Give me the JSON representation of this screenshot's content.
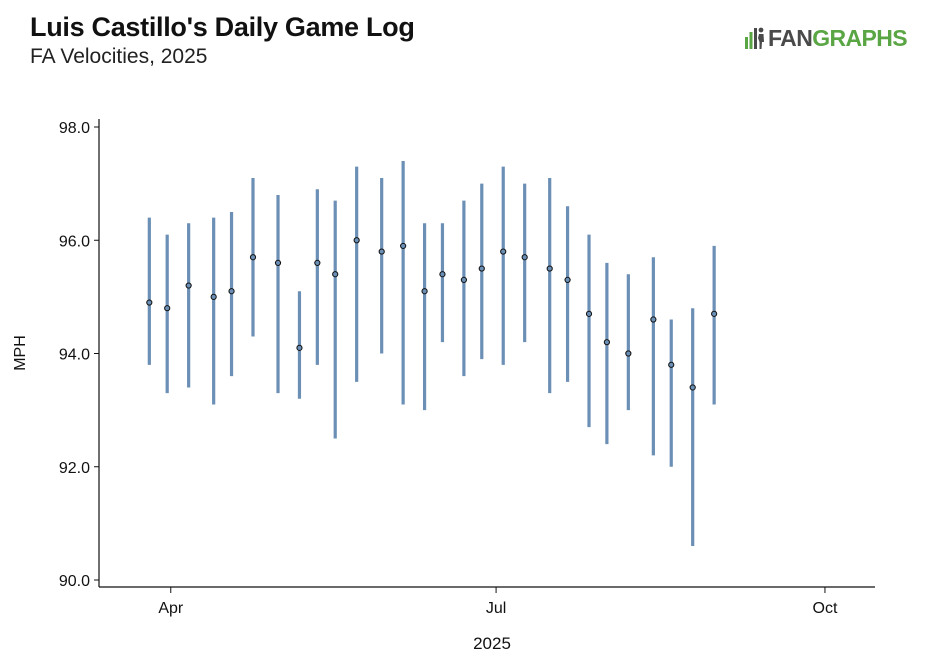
{
  "header": {
    "title": "Luis Castillo's Daily Game Log",
    "subtitle": "FA Velocities, 2025"
  },
  "logo": {
    "fan_text": "FAN",
    "graphs_text": "GRAPHS",
    "colors": {
      "fan": "#4a4a4a",
      "graphs": "#5aa544"
    }
  },
  "chart_data": {
    "type": "scatter",
    "xlabel": "2025",
    "ylabel": "MPH",
    "ylim": [
      90.0,
      98.0
    ],
    "yticks": [
      "90.0",
      "92.0",
      "94.0",
      "96.0",
      "98.0"
    ],
    "xlim": [
      "2025-03-15",
      "2025-10-15"
    ],
    "xticks": [
      {
        "date": "2025-04-01",
        "label": "Apr"
      },
      {
        "date": "2025-07-01",
        "label": "Jul"
      },
      {
        "date": "2025-10-01",
        "label": "Oct"
      }
    ],
    "grid": false,
    "colors": {
      "range_bar": "#6b8fb5",
      "point_fill": "#6b8fb5",
      "point_edge": "#111111"
    },
    "points": [
      {
        "date": "2025-03-26",
        "avg": 94.9,
        "min": 93.8,
        "max": 96.4
      },
      {
        "date": "2025-03-31",
        "avg": 94.8,
        "min": 93.3,
        "max": 96.1
      },
      {
        "date": "2025-04-06",
        "avg": 95.2,
        "min": 93.4,
        "max": 96.3
      },
      {
        "date": "2025-04-13",
        "avg": 95.0,
        "min": 93.1,
        "max": 96.4
      },
      {
        "date": "2025-04-18",
        "avg": 95.1,
        "min": 93.6,
        "max": 96.5
      },
      {
        "date": "2025-04-24",
        "avg": 95.7,
        "min": 94.3,
        "max": 97.1
      },
      {
        "date": "2025-05-01",
        "avg": 95.6,
        "min": 93.3,
        "max": 96.8
      },
      {
        "date": "2025-05-07",
        "avg": 94.1,
        "min": 93.2,
        "max": 95.1
      },
      {
        "date": "2025-05-12",
        "avg": 95.6,
        "min": 93.8,
        "max": 96.9
      },
      {
        "date": "2025-05-17",
        "avg": 95.4,
        "min": 92.5,
        "max": 96.7
      },
      {
        "date": "2025-05-23",
        "avg": 96.0,
        "min": 93.5,
        "max": 97.3
      },
      {
        "date": "2025-05-30",
        "avg": 95.8,
        "min": 94.0,
        "max": 97.1
      },
      {
        "date": "2025-06-05",
        "avg": 95.9,
        "min": 93.1,
        "max": 97.4
      },
      {
        "date": "2025-06-11",
        "avg": 95.1,
        "min": 93.0,
        "max": 96.3
      },
      {
        "date": "2025-06-16",
        "avg": 95.4,
        "min": 94.2,
        "max": 96.3
      },
      {
        "date": "2025-06-22",
        "avg": 95.3,
        "min": 93.6,
        "max": 96.7
      },
      {
        "date": "2025-06-27",
        "avg": 95.5,
        "min": 93.9,
        "max": 97.0
      },
      {
        "date": "2025-07-03",
        "avg": 95.8,
        "min": 93.8,
        "max": 97.3
      },
      {
        "date": "2025-07-09",
        "avg": 95.7,
        "min": 94.2,
        "max": 97.0
      },
      {
        "date": "2025-07-16",
        "avg": 95.5,
        "min": 93.3,
        "max": 97.1
      },
      {
        "date": "2025-07-21",
        "avg": 95.3,
        "min": 93.5,
        "max": 96.6
      },
      {
        "date": "2025-07-27",
        "avg": 94.7,
        "min": 92.7,
        "max": 96.1
      },
      {
        "date": "2025-08-01",
        "avg": 94.2,
        "min": 92.4,
        "max": 95.6
      },
      {
        "date": "2025-08-07",
        "avg": 94.0,
        "min": 93.0,
        "max": 95.4
      },
      {
        "date": "2025-08-14",
        "avg": 94.6,
        "min": 92.2,
        "max": 95.7
      },
      {
        "date": "2025-08-19",
        "avg": 93.8,
        "min": 92.0,
        "max": 94.6
      },
      {
        "date": "2025-08-25",
        "avg": 93.4,
        "min": 90.6,
        "max": 94.8
      },
      {
        "date": "2025-08-31",
        "avg": 94.7,
        "min": 93.1,
        "max": 95.9
      }
    ]
  }
}
